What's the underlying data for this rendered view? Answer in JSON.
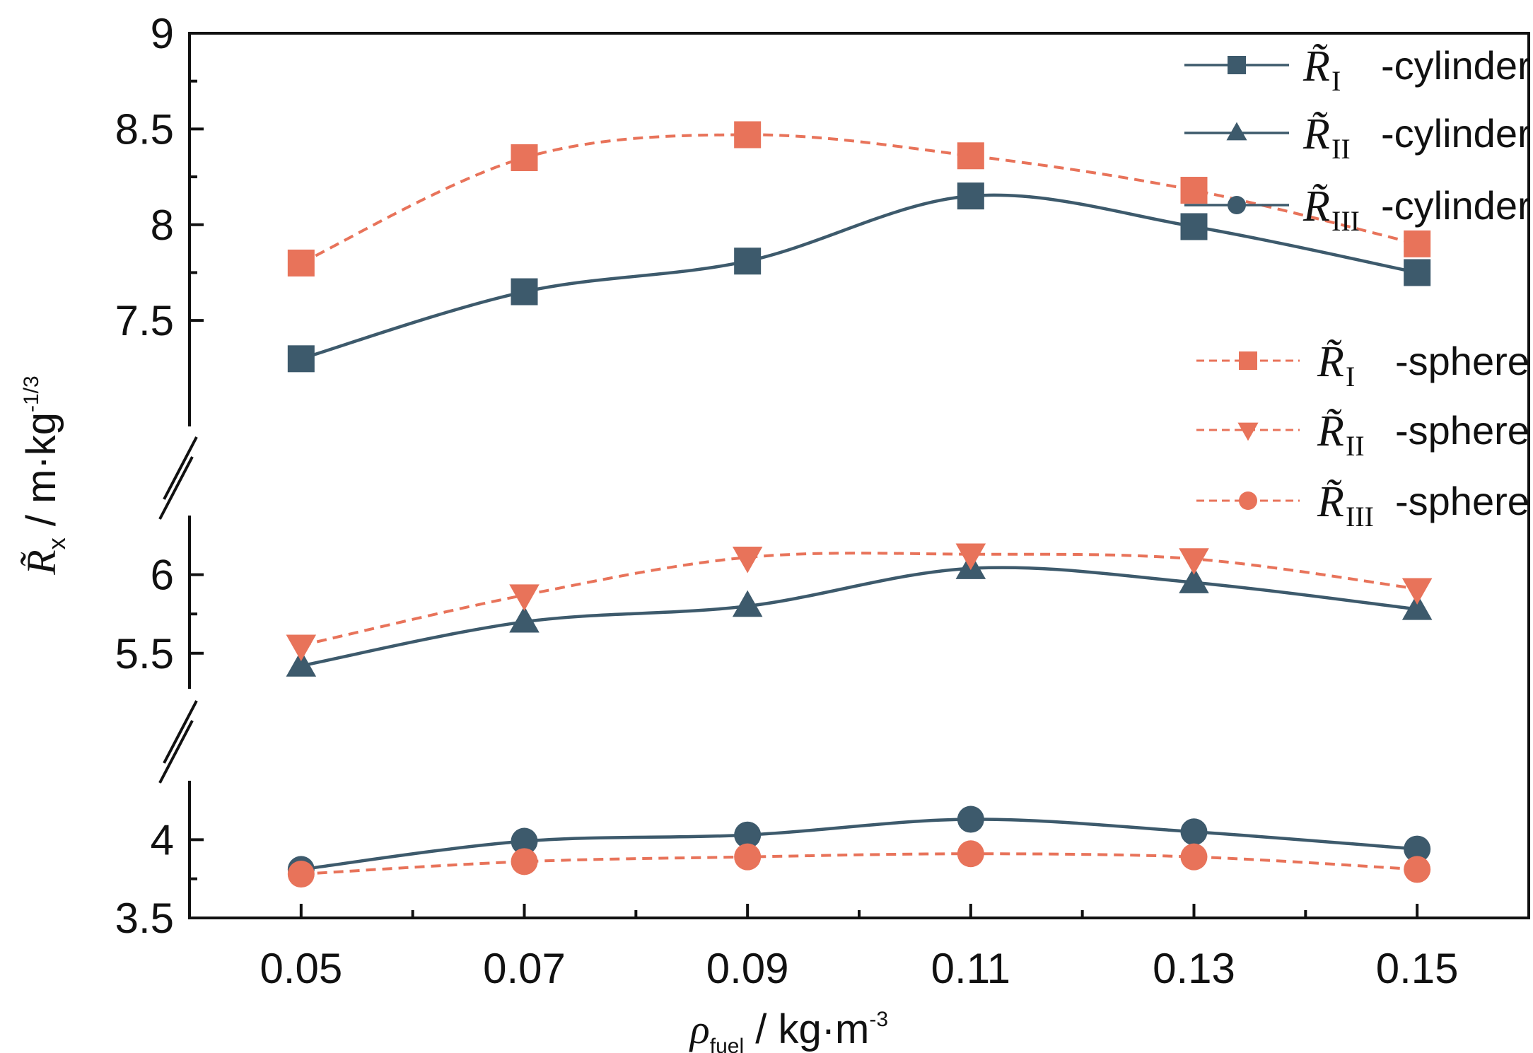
{
  "chart_data": {
    "type": "line",
    "x": [
      0.05,
      0.07,
      0.09,
      0.11,
      0.13,
      0.15
    ],
    "x_tick_labels": [
      "0.05",
      "0.07",
      "0.09",
      "0.11",
      "0.13",
      "0.15"
    ],
    "xlim": [
      0.04,
      0.16
    ],
    "y_tick_labels": [
      "3.5",
      "4",
      "5.5",
      "6",
      "7.5",
      "8",
      "8.5",
      "9"
    ],
    "y_axis_broken": true,
    "y_segments": [
      [
        3.5,
        4.25
      ],
      [
        5.4,
        6.25
      ],
      [
        7.05,
        9.0
      ]
    ],
    "xlabel": {
      "symbol": "ρ",
      "sub": "fuel",
      "rest": " / kg·m",
      "sup": "-3"
    },
    "ylabel": {
      "symbol": "R̃",
      "sub": "x",
      "rest": " / m·kg",
      "sup": "-1/3"
    },
    "grid": false,
    "legend_position": "top-right",
    "series": [
      {
        "name": "R̃_I -cylinder",
        "symbol": "R̃",
        "sub": "I",
        "suffix": "-cylinder",
        "marker": "square",
        "style": "solid",
        "color": "#3d5a6c",
        "values": [
          7.3,
          7.65,
          7.81,
          8.15,
          7.99,
          7.75
        ]
      },
      {
        "name": "R̃_II -cylinder",
        "symbol": "R̃",
        "sub": "II",
        "suffix": "-cylinder",
        "marker": "triangle-up",
        "style": "solid",
        "color": "#3d5a6c",
        "values": [
          5.42,
          5.7,
          5.8,
          6.04,
          5.95,
          5.78
        ]
      },
      {
        "name": "R̃_III -cylinder",
        "symbol": "R̃",
        "sub": "III",
        "suffix": "-cylinder",
        "marker": "circle",
        "style": "solid",
        "color": "#3d5a6c",
        "values": [
          3.81,
          3.99,
          4.03,
          4.13,
          4.05,
          3.94
        ]
      },
      {
        "name": "R̃_I -sphere",
        "symbol": "R̃",
        "sub": "I",
        "suffix": "-sphere",
        "marker": "square",
        "style": "dashed",
        "color": "#e8735a",
        "values": [
          7.8,
          8.35,
          8.47,
          8.36,
          8.18,
          7.9
        ]
      },
      {
        "name": "R̃_II -sphere",
        "symbol": "R̃",
        "sub": "II",
        "suffix": "-sphere",
        "marker": "triangle-down",
        "style": "dashed",
        "color": "#e8735a",
        "values": [
          5.55,
          5.87,
          6.11,
          6.13,
          6.1,
          5.91
        ]
      },
      {
        "name": "R̃_III -sphere",
        "symbol": "R̃",
        "sub": "III",
        "suffix": "-sphere",
        "marker": "circle",
        "style": "dashed",
        "color": "#e8735a",
        "values": [
          3.78,
          3.86,
          3.89,
          3.91,
          3.89,
          3.81
        ]
      }
    ]
  }
}
